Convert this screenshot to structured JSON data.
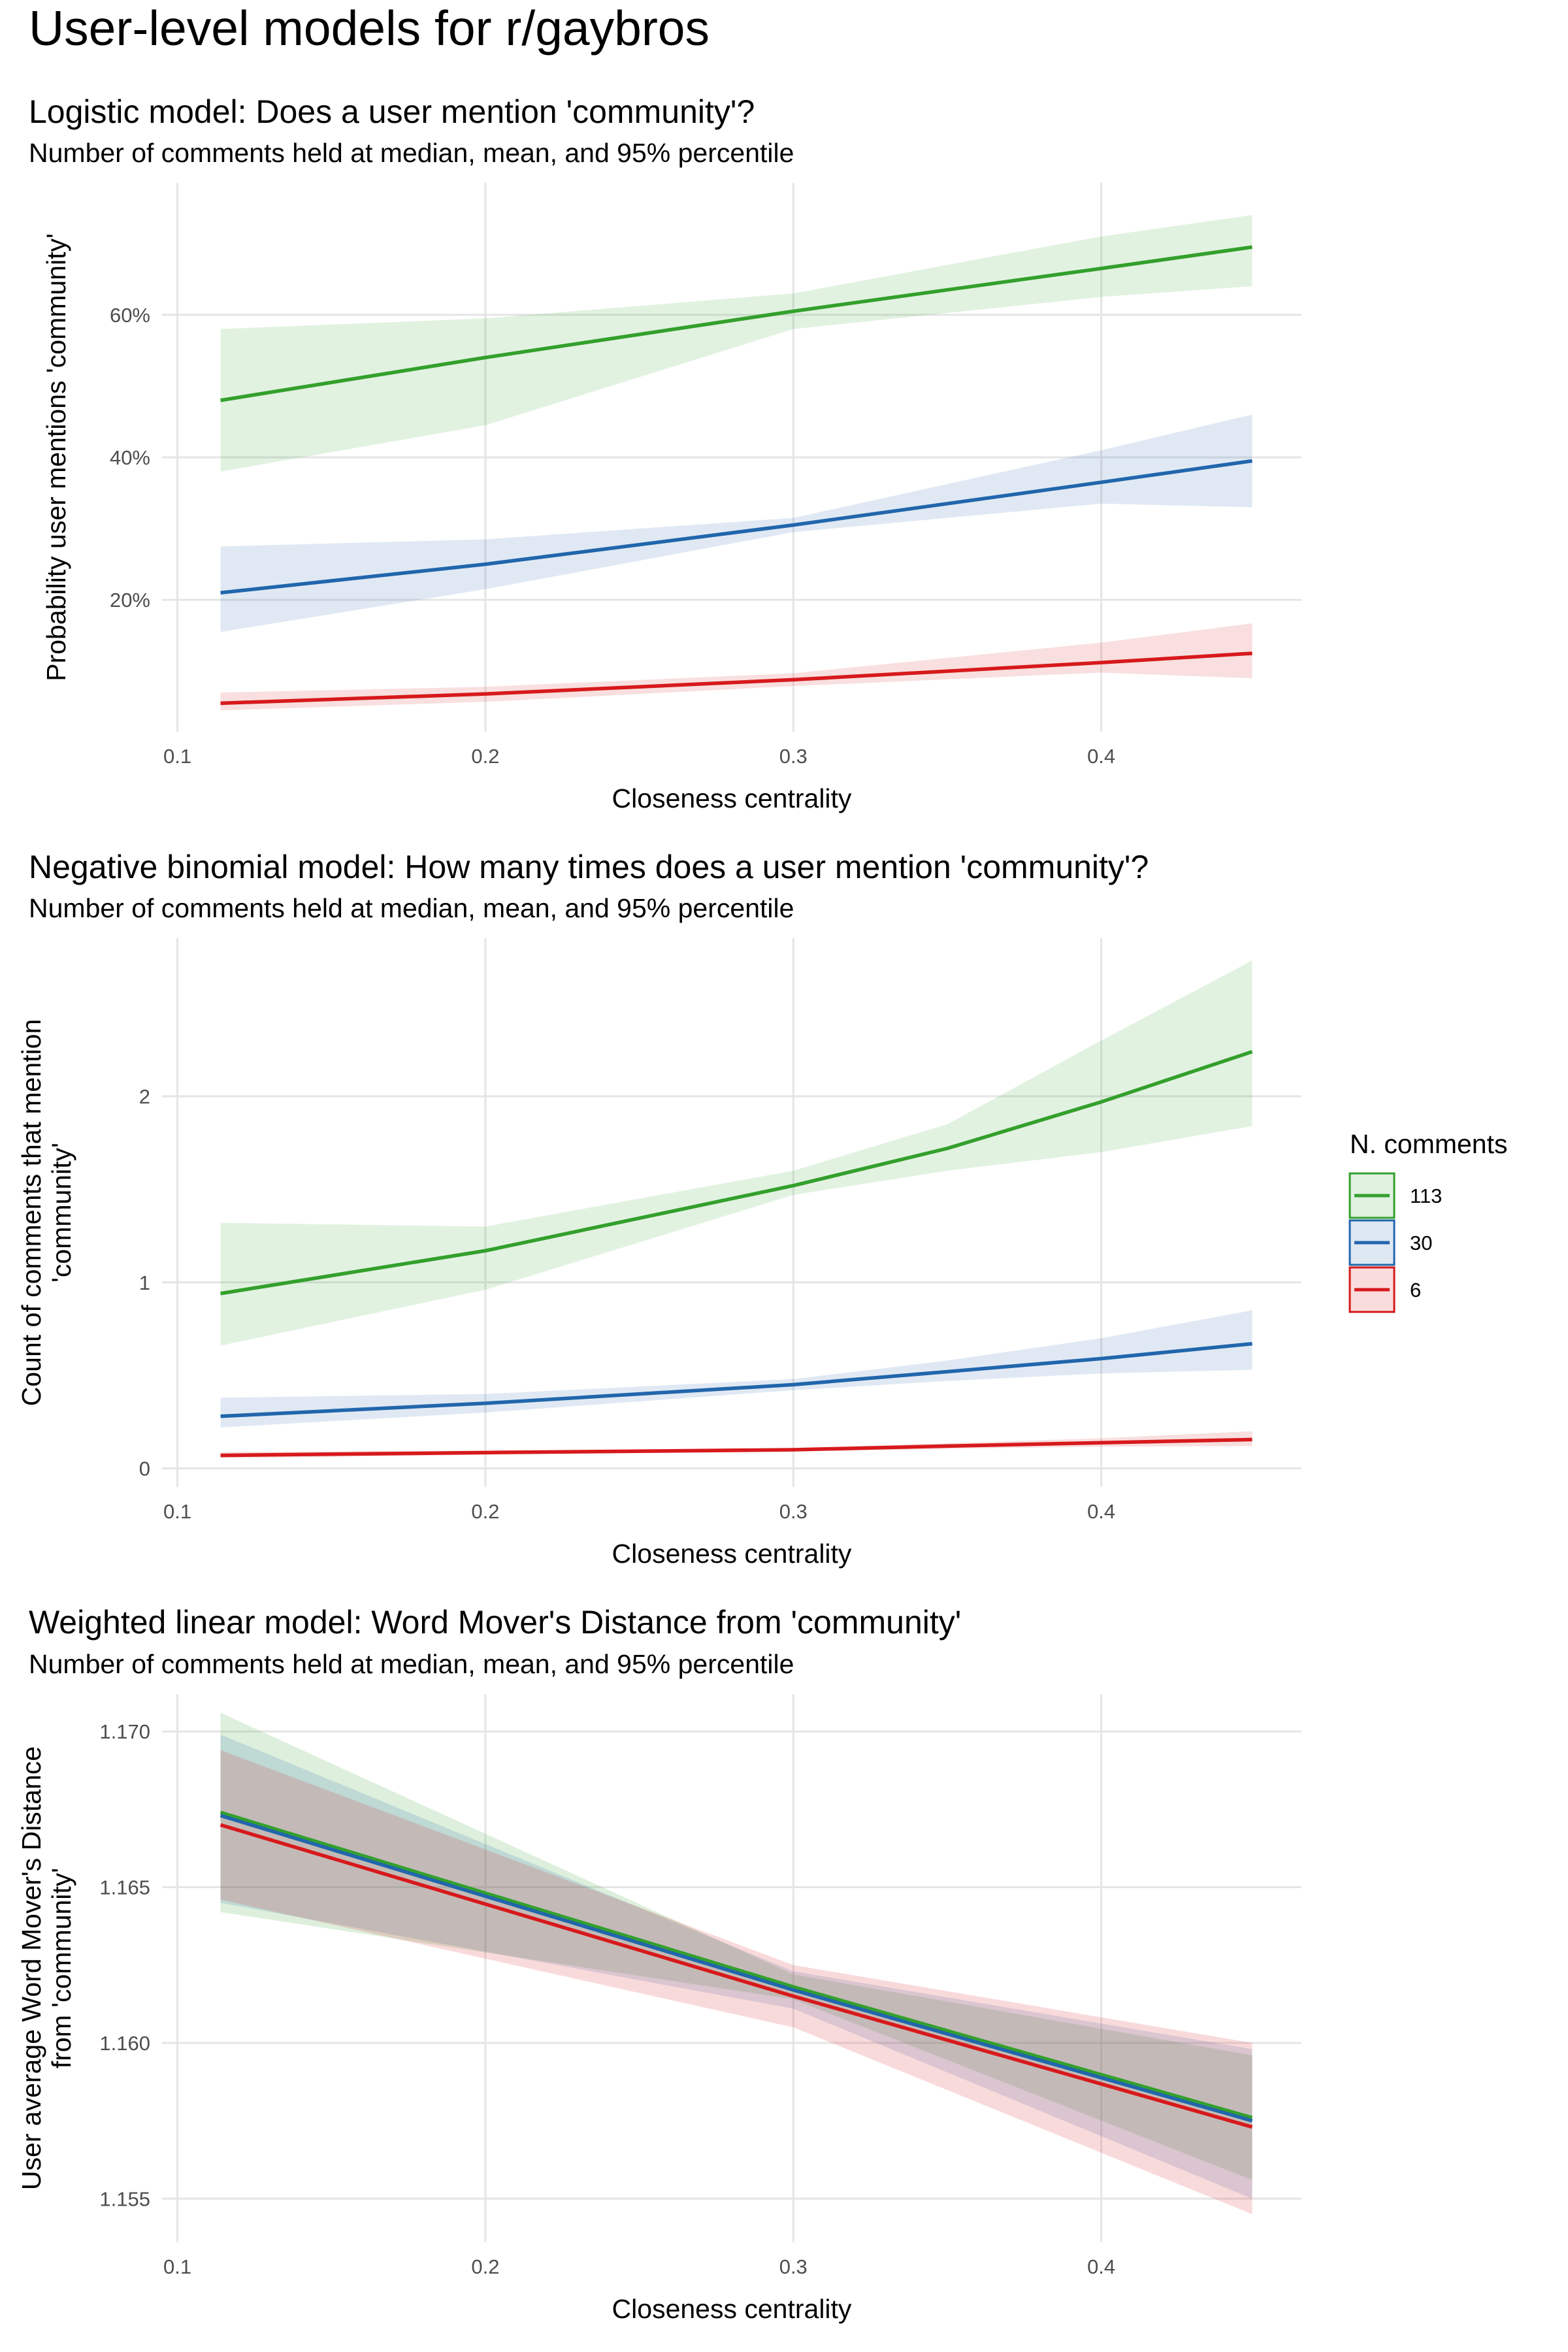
{
  "title": "User-level models for r/gaybros",
  "colors": {
    "113": "#33a02c",
    "30": "#2166ac",
    "6": "#d7191c",
    "grid": "#e5e5e5"
  },
  "legend": {
    "title": "N. comments",
    "placement": "right",
    "entries": [
      {
        "label": "113",
        "color": "#33a02c"
      },
      {
        "label": "30",
        "color": "#2166ac"
      },
      {
        "label": "6",
        "color": "#d7191c"
      }
    ]
  },
  "chart_data": [
    {
      "type": "line",
      "title": "Logistic model: Does a user mention 'community'?",
      "subtitle": "Number of comments held at median, mean, and 95% percentile",
      "xlabel": "Closeness centrality",
      "ylabel": "Probability user mentions 'community'",
      "xlim": [
        0.095,
        0.465
      ],
      "ylim": [
        0.015,
        0.785
      ],
      "xticks": [
        0.1,
        0.2,
        0.3,
        0.4
      ],
      "xtick_labels": [
        "0.1",
        "0.2",
        "0.3",
        "0.4"
      ],
      "yticks": [
        0.2,
        0.4,
        0.6
      ],
      "ytick_labels": [
        "20%",
        "40%",
        "60%"
      ],
      "grid": true,
      "x": [
        0.114,
        0.2,
        0.3,
        0.4,
        0.449
      ],
      "series": [
        {
          "name": "113",
          "color": "#33a02c",
          "values": [
            0.48,
            0.54,
            0.605,
            0.665,
            0.695
          ],
          "lower": [
            0.38,
            0.445,
            0.58,
            0.625,
            0.64
          ],
          "upper": [
            0.58,
            0.595,
            0.63,
            0.71,
            0.74
          ]
        },
        {
          "name": "30",
          "color": "#2166ac",
          "values": [
            0.21,
            0.25,
            0.305,
            0.365,
            0.395
          ],
          "lower": [
            0.155,
            0.215,
            0.295,
            0.335,
            0.33
          ],
          "upper": [
            0.275,
            0.285,
            0.315,
            0.41,
            0.46
          ]
        },
        {
          "name": "6",
          "color": "#d7191c",
          "values": [
            0.055,
            0.068,
            0.088,
            0.112,
            0.125
          ],
          "lower": [
            0.045,
            0.057,
            0.079,
            0.098,
            0.09
          ],
          "upper": [
            0.07,
            0.078,
            0.097,
            0.14,
            0.167
          ]
        }
      ]
    },
    {
      "type": "line",
      "title": "Negative binomial model: How many times does a user mention 'community'?",
      "subtitle": "Number of comments held at median, mean, and 95% percentile",
      "xlabel": "Closeness centrality",
      "ylabel": "Count of comments that mention\n'community'",
      "xlim": [
        0.095,
        0.465
      ],
      "ylim": [
        -0.1,
        2.85
      ],
      "xticks": [
        0.1,
        0.2,
        0.3,
        0.4
      ],
      "xtick_labels": [
        "0.1",
        "0.2",
        "0.3",
        "0.4"
      ],
      "yticks": [
        0,
        1,
        2
      ],
      "ytick_labels": [
        "0",
        "1",
        "2"
      ],
      "grid": true,
      "x": [
        0.114,
        0.2,
        0.3,
        0.35,
        0.4,
        0.449
      ],
      "series": [
        {
          "name": "113",
          "color": "#33a02c",
          "values": [
            0.94,
            1.17,
            1.52,
            1.72,
            1.97,
            2.24
          ],
          "lower": [
            0.66,
            0.96,
            1.47,
            1.6,
            1.7,
            1.84
          ],
          "upper": [
            1.32,
            1.3,
            1.6,
            1.85,
            2.3,
            2.73
          ]
        },
        {
          "name": "30",
          "color": "#2166ac",
          "values": [
            0.28,
            0.35,
            0.45,
            0.52,
            0.59,
            0.67
          ],
          "lower": [
            0.22,
            0.3,
            0.42,
            0.47,
            0.51,
            0.53
          ],
          "upper": [
            0.38,
            0.4,
            0.48,
            0.58,
            0.7,
            0.85
          ]
        },
        {
          "name": "6",
          "color": "#d7191c",
          "values": [
            0.07,
            0.085,
            0.1,
            0.12,
            0.138,
            0.155
          ],
          "lower": [
            0.055,
            0.073,
            0.091,
            0.105,
            0.117,
            0.12
          ],
          "upper": [
            0.088,
            0.096,
            0.11,
            0.135,
            0.162,
            0.2
          ]
        }
      ]
    },
    {
      "type": "line",
      "title": "Weighted linear model: Word Mover's Distance from 'community'",
      "subtitle": "Number of comments held at median, mean, and 95% percentile",
      "xlabel": "Closeness centrality",
      "ylabel": "User average Word Mover's Distance\nfrom 'community'",
      "xlim": [
        0.095,
        0.465
      ],
      "ylim": [
        1.1536,
        1.1712
      ],
      "xticks": [
        0.1,
        0.2,
        0.3,
        0.4
      ],
      "xtick_labels": [
        "0.1",
        "0.2",
        "0.3",
        "0.4"
      ],
      "yticks": [
        1.155,
        1.16,
        1.165,
        1.17
      ],
      "ytick_labels": [
        "1.155",
        "1.160",
        "1.165",
        "1.170"
      ],
      "grid": true,
      "x": [
        0.114,
        0.3,
        0.449
      ],
      "series": [
        {
          "name": "113",
          "color": "#33a02c",
          "values": [
            1.1674,
            1.1618,
            1.1576
          ],
          "lower": [
            1.1642,
            1.1614,
            1.1556
          ],
          "upper": [
            1.1706,
            1.1622,
            1.1596
          ]
        },
        {
          "name": "30",
          "color": "#2166ac",
          "values": [
            1.1673,
            1.1617,
            1.1575
          ],
          "lower": [
            1.1645,
            1.1611,
            1.155
          ],
          "upper": [
            1.1699,
            1.1623,
            1.1598
          ]
        },
        {
          "name": "6",
          "color": "#d7191c",
          "values": [
            1.167,
            1.1615,
            1.1573
          ],
          "lower": [
            1.1646,
            1.1605,
            1.1545
          ],
          "upper": [
            1.1694,
            1.1625,
            1.16
          ]
        }
      ]
    }
  ]
}
